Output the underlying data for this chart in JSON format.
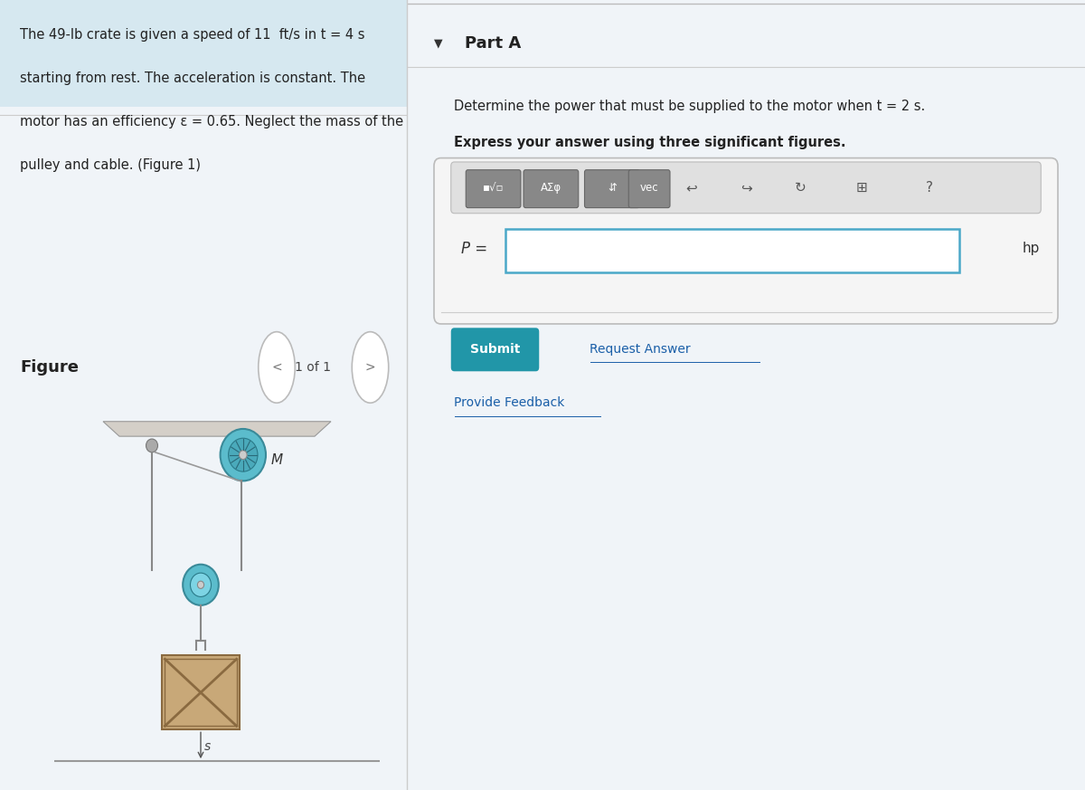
{
  "bg_color": "#f0f4f8",
  "right_bg_color": "#ffffff",
  "left_panel_bg": "#d6e8f0",
  "left_text": "The 49-lb crate is given a speed of 11  ft/s in t = 4 s\nstarting from rest. The acceleration is constant. The\nmotor has an efficiency ε = 0.65. Neglect the mass of the\npulley and cable. (Figure 1)",
  "part_a_label": "Part A",
  "question_text": "Determine the power that must be supplied to the motor when t = 2 s.",
  "bold_text": "Express your answer using three significant figures.",
  "p_label": "P =",
  "unit_label": "hp",
  "submit_btn_text": "Submit",
  "submit_btn_color": "#2196a8",
  "request_answer_text": "Request Answer",
  "provide_feedback_text": "Provide Feedback",
  "figure_label": "Figure",
  "figure_nav": "1 of 1",
  "toolbar_buttons": [
    "■√□",
    "AΣφ",
    "⇵",
    "vec"
  ],
  "divider_color": "#cccccc",
  "input_border_color": "#4aa8c8",
  "toolbar_bg": "#e8e8e8",
  "toolbar_btn_bg": "#888888"
}
